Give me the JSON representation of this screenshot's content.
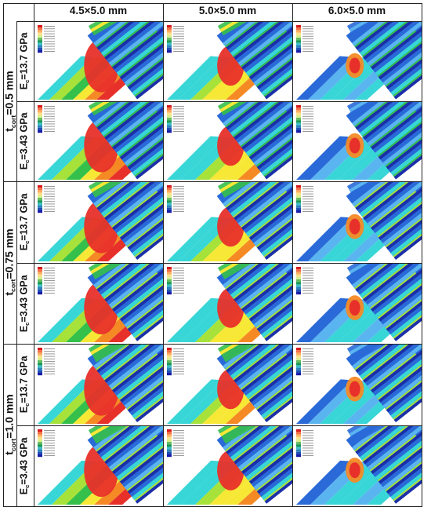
{
  "columns": [
    "4.5×5.0 mm",
    "5.0×5.0 mm",
    "6.0×5.0 mm"
  ],
  "groups": [
    {
      "symbol": "t",
      "subscript": "cort",
      "value": "=0.5 mm"
    },
    {
      "symbol": "t",
      "subscript": "cort",
      "value": "=0.75 mm"
    },
    {
      "symbol": "t",
      "subscript": "cort",
      "value": "=1.0 mm"
    }
  ],
  "rows": [
    {
      "symbol": "E",
      "subscript": "c",
      "value": "=13.7 GPa"
    },
    {
      "symbol": "E",
      "subscript": "c",
      "value": "=3.43 GPa"
    }
  ],
  "legend_colors": [
    "#d7191c",
    "#f46d43",
    "#fdae61",
    "#fee08b",
    "#d9ef8b",
    "#66bd63",
    "#1a9850",
    "#3fc0c8",
    "#2b83ba",
    "#1f4fb4",
    "#1a1aa8"
  ],
  "stress_palette": {
    "red": "#e8302a",
    "orange": "#f58a25",
    "yellow": "#f7e836",
    "lime": "#a6e23a",
    "green": "#34c04a",
    "cyan": "#38d6d6",
    "lightblue": "#5ab4f0",
    "blue": "#2a6ad8",
    "navy": "#1b2fa8"
  }
}
